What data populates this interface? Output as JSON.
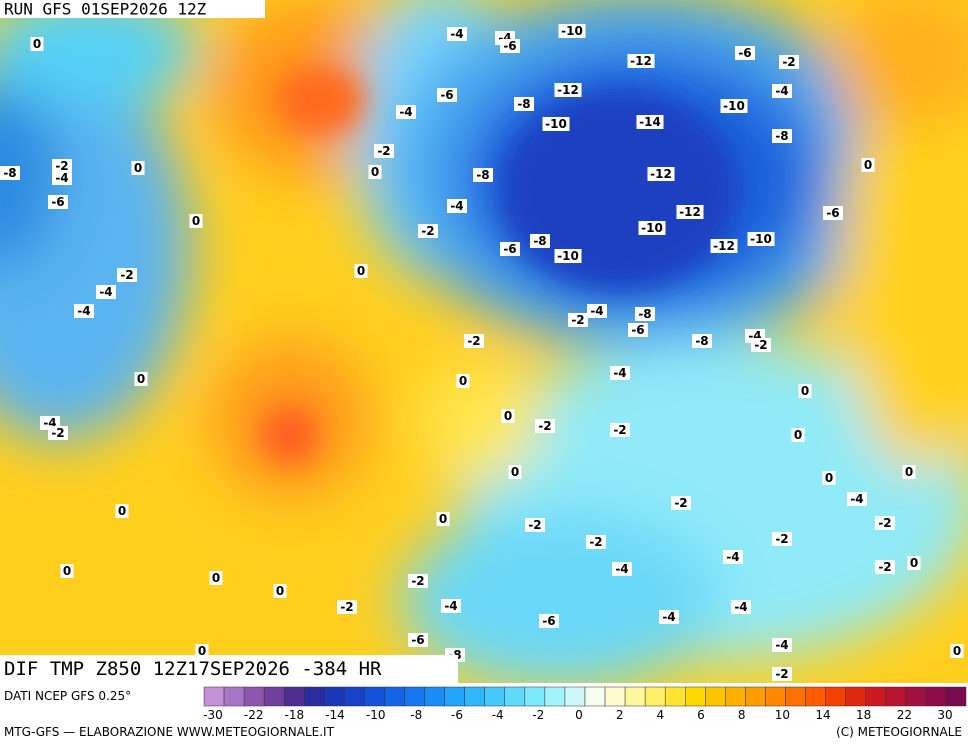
{
  "header": {
    "run": "RUN GFS 01SEP2026 12Z"
  },
  "map": {
    "title": "DIF TMP Z850 12Z17SEP2026 -384 HR",
    "contour_labels": [
      0,
      -4,
      -4,
      -6,
      -10,
      -6,
      -2,
      -12,
      -6,
      -12,
      -4,
      -4,
      -8,
      -10,
      -10,
      -14,
      -8,
      -2,
      -2,
      -4,
      -8,
      0,
      0,
      0,
      -8,
      -12,
      -6,
      -4,
      -12,
      -6,
      0,
      -2,
      -10,
      -6,
      -8,
      -10,
      -12,
      -10,
      0,
      -2,
      -4,
      -4,
      -4,
      -2,
      -8,
      -6,
      -2,
      -8,
      -4,
      -2,
      0,
      0,
      -4,
      0,
      -4,
      -2,
      0,
      -2,
      -2,
      0,
      0,
      0,
      0,
      -4,
      -2,
      0,
      0,
      -2,
      -2,
      -2,
      -2,
      -4,
      -4,
      -2,
      0,
      0,
      0,
      -2,
      0,
      -2,
      -4,
      -4,
      -6,
      -4,
      -6,
      -4,
      -8,
      0,
      -2,
      0
    ]
  },
  "colorbar": {
    "source": "DATI NCEP GFS 0.25°",
    "ticks": [
      -30,
      -22,
      -18,
      -14,
      -10,
      -8,
      -6,
      -4,
      -2,
      0,
      2,
      4,
      6,
      8,
      10,
      14,
      18,
      22,
      30
    ],
    "colors": [
      "#c490d8",
      "#a874c6",
      "#8e56ae",
      "#70409c",
      "#4e2c90",
      "#2c2ca0",
      "#1c36b8",
      "#1842cc",
      "#1452dc",
      "#1464e8",
      "#1678f0",
      "#1a8cf5",
      "#22a2f8",
      "#30b6fa",
      "#46c8fb",
      "#60dafb",
      "#7ce8fb",
      "#a2f2fb",
      "#cef8fb",
      "#f4fff0",
      "#fffacd",
      "#fff59a",
      "#ffee66",
      "#ffe433",
      "#ffd700",
      "#ffc400",
      "#ffb000",
      "#ff9c00",
      "#ff8800",
      "#ff7000",
      "#ff5a00",
      "#f44000",
      "#e02a10",
      "#cc1a20",
      "#b81430",
      "#a01040",
      "#8c0c48",
      "#7a0a50"
    ]
  },
  "footer": {
    "left": "MTG-GFS — ELABORAZIONE WWW.METEOGIORNALE.IT",
    "right": "(C) METEOGIORNALE"
  }
}
